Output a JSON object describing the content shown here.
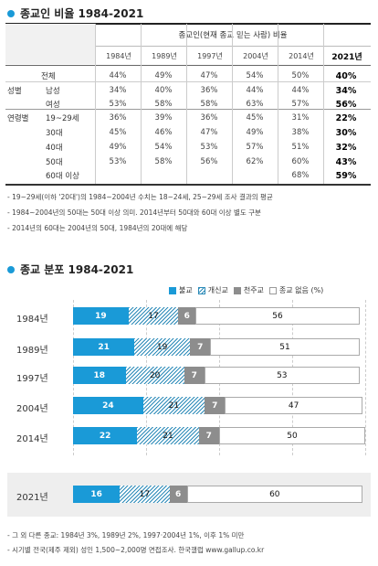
{
  "section1": {
    "title": "종교인 비율 1984-2021",
    "header": "종교인(현재 종교 믿는 사람) 비율",
    "years": [
      "1984년",
      "1989년",
      "1997년",
      "2004년",
      "2014년",
      "2021년"
    ],
    "rows": [
      {
        "group": "",
        "label": "전체",
        "values": [
          "44%",
          "49%",
          "47%",
          "54%",
          "50%",
          "40%"
        ]
      },
      {
        "group": "성별",
        "label": "남성",
        "values": [
          "34%",
          "40%",
          "36%",
          "44%",
          "44%",
          "34%"
        ]
      },
      {
        "group": "",
        "label": "여성",
        "values": [
          "53%",
          "58%",
          "58%",
          "63%",
          "57%",
          "56%"
        ]
      },
      {
        "group": "연령별",
        "label": "19~29세",
        "values": [
          "36%",
          "39%",
          "36%",
          "45%",
          "31%",
          "22%"
        ]
      },
      {
        "group": "",
        "label": "30대",
        "values": [
          "45%",
          "46%",
          "47%",
          "49%",
          "38%",
          "30%"
        ]
      },
      {
        "group": "",
        "label": "40대",
        "values": [
          "49%",
          "54%",
          "53%",
          "57%",
          "51%",
          "32%"
        ]
      },
      {
        "group": "",
        "label": "50대",
        "values": [
          "53%",
          "58%",
          "56%",
          "62%",
          "60%",
          "43%"
        ]
      },
      {
        "group": "",
        "label": "60대 이상",
        "values": [
          "",
          "",
          "",
          "",
          "68%",
          "59%"
        ]
      }
    ],
    "notes": [
      "- 19~29세(이하 '20대')의 1984~2004년 수치는 18~24세, 25~29세 조사 결과의 평균",
      "- 1984~2004년의 50대는 50대 이상 의미. 2014년부터 50대와 60대 이상 별도 구분",
      "- 2014년의 60대는 2004년의 50대, 1984년의 20대에 해당"
    ]
  },
  "section2": {
    "title": "종교 분포 1984-2021",
    "legend": [
      "불교",
      "개신교",
      "천주교",
      "종교 없음 (%)"
    ],
    "colors": {
      "buddhism": "#1a9ad7",
      "protestant": "#2b8ab8",
      "catholic": "#8d8d8d",
      "none": "#ffffff"
    },
    "notes": [
      "- 그 외 다른 종교: 1984년 3%, 1989년 2%, 1997·2004년 1%, 이후 1% 미만",
      "- 시기별 전국(제주 제외) 성인 1,500~2,000명 면접조사. 한국갤럽 www.gallup.co.kr"
    ]
  },
  "chart_data": {
    "type": "bar",
    "stacked": true,
    "orientation": "horizontal",
    "title": "종교 분포 1984-2021",
    "categories": [
      "1984년",
      "1989년",
      "1997년",
      "2004년",
      "2014년",
      "2021년"
    ],
    "series": [
      {
        "name": "불교",
        "values": [
          19,
          21,
          18,
          24,
          22,
          16
        ]
      },
      {
        "name": "개신교",
        "values": [
          17,
          19,
          20,
          21,
          21,
          17
        ]
      },
      {
        "name": "천주교",
        "values": [
          6,
          7,
          7,
          7,
          7,
          6
        ]
      },
      {
        "name": "종교 없음 (%)",
        "values": [
          56,
          51,
          53,
          47,
          50,
          60
        ]
      }
    ]
  }
}
